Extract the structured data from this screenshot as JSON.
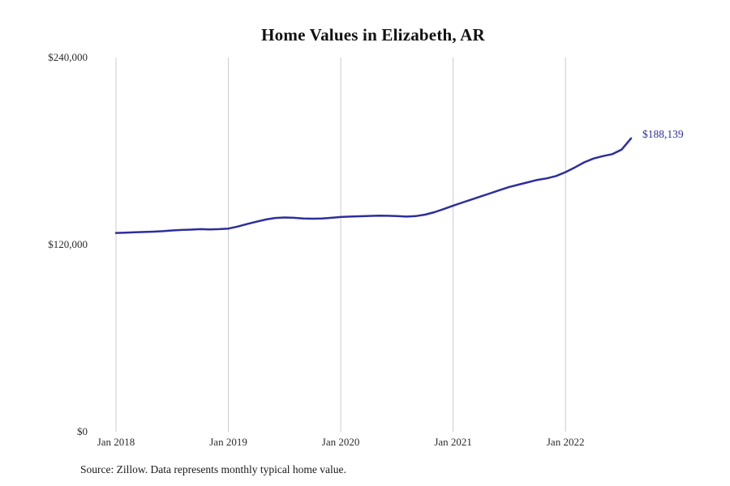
{
  "chart_data": {
    "type": "line",
    "title": "Home Values in Elizabeth, AR",
    "xlabel": "",
    "ylabel": "",
    "ylim": [
      0,
      240000
    ],
    "grid": "vertical-only",
    "legend": "none",
    "line_color": "#2d2e9e",
    "grid_color": "#cccccc",
    "end_label": "$188,139",
    "x_tick_labels": [
      "Jan 2018",
      "Jan 2019",
      "Jan 2020",
      "Jan 2021",
      "Jan 2022"
    ],
    "x_tick_positions": [
      0,
      12,
      24,
      36,
      48
    ],
    "y_ticks": [
      {
        "value": 0,
        "label": "$0"
      },
      {
        "value": 120000,
        "label": "$120,000"
      },
      {
        "value": 240000,
        "label": "$240,000"
      }
    ],
    "x": [
      "2018-01",
      "2018-02",
      "2018-03",
      "2018-04",
      "2018-05",
      "2018-06",
      "2018-07",
      "2018-08",
      "2018-09",
      "2018-10",
      "2018-11",
      "2018-12",
      "2019-01",
      "2019-02",
      "2019-03",
      "2019-04",
      "2019-05",
      "2019-06",
      "2019-07",
      "2019-08",
      "2019-09",
      "2019-10",
      "2019-11",
      "2019-12",
      "2020-01",
      "2020-02",
      "2020-03",
      "2020-04",
      "2020-05",
      "2020-06",
      "2020-07",
      "2020-08",
      "2020-09",
      "2020-10",
      "2020-11",
      "2020-12",
      "2021-01",
      "2021-02",
      "2021-03",
      "2021-04",
      "2021-05",
      "2021-06",
      "2021-07",
      "2021-08",
      "2021-09",
      "2021-10",
      "2021-11",
      "2021-12",
      "2022-01",
      "2022-02",
      "2022-03",
      "2022-04",
      "2022-05",
      "2022-06",
      "2022-07",
      "2022-08"
    ],
    "values": [
      127500,
      127700,
      127900,
      128100,
      128300,
      128600,
      129100,
      129400,
      129600,
      129900,
      129700,
      129900,
      130300,
      131600,
      133200,
      134700,
      136100,
      137100,
      137400,
      137200,
      136800,
      136600,
      136800,
      137200,
      137700,
      138000,
      138200,
      138400,
      138600,
      138500,
      138300,
      138000,
      138300,
      139200,
      140800,
      142800,
      145000,
      147000,
      149000,
      151000,
      153000,
      155000,
      157000,
      158500,
      160000,
      161500,
      162500,
      164000,
      166500,
      169500,
      172800,
      175200,
      176800,
      178000,
      181000,
      188139
    ]
  },
  "footer": {
    "source": "Source: Zillow. Data represents monthly typical home value."
  }
}
